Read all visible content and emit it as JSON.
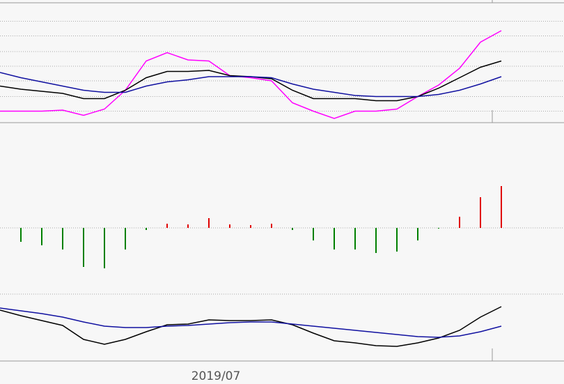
{
  "chart_data": [
    {
      "type": "line",
      "ylim": [
        0,
        100
      ],
      "yticks": [
        7,
        21,
        36,
        50,
        64,
        79,
        93
      ],
      "grid": true,
      "series": [
        {
          "color": "#ff00ff",
          "values": [
            7,
            7,
            7,
            8,
            3,
            9,
            27,
            55,
            63,
            56,
            55,
            41,
            39,
            36,
            15,
            7,
            0,
            7,
            7,
            9,
            21,
            32,
            48,
            73,
            84
          ]
        },
        {
          "color": "#000000",
          "values": [
            31,
            28,
            26,
            24,
            19,
            19,
            27,
            39,
            45,
            45,
            46,
            41,
            40,
            38,
            27,
            19,
            19,
            19,
            17,
            17,
            21,
            29,
            39,
            49,
            55
          ]
        },
        {
          "color": "#1010a0",
          "values": [
            44,
            39,
            35,
            31,
            27,
            25,
            25,
            31,
            35,
            37,
            40,
            40,
            40,
            39,
            33,
            28,
            25,
            22,
            21,
            21,
            21,
            23,
            27,
            33,
            40
          ]
        }
      ]
    },
    {
      "type": "bar",
      "ylim": [
        -100,
        100
      ],
      "yticks": [
        -95,
        0
      ],
      "grid": true,
      "up_color": "#e00000",
      "down_color": "#008000",
      "values": [
        null,
        -20,
        -25,
        -31,
        -56,
        -58,
        -31,
        -3,
        6,
        5,
        14,
        5,
        4,
        6,
        -3,
        -18,
        -31,
        -31,
        -36,
        -34,
        -18,
        -1,
        16,
        44,
        60
      ]
    },
    {
      "type": "line",
      "ylim": [
        0,
        100
      ],
      "categories": [
        null,
        null,
        null,
        null,
        null,
        null,
        null,
        null,
        null,
        null,
        "2019/07",
        null,
        null,
        null,
        null,
        null,
        null,
        null,
        null,
        null,
        null,
        null,
        null,
        null,
        null
      ],
      "series": [
        {
          "color": "#000000",
          "values": [
            75,
            67,
            60,
            53,
            33,
            26,
            33,
            44,
            54,
            55,
            61,
            60,
            60,
            61,
            54,
            42,
            31,
            28,
            24,
            23,
            28,
            35,
            46,
            65,
            80
          ]
        },
        {
          "color": "#1010a0",
          "values": [
            78,
            74,
            70,
            65,
            58,
            52,
            50,
            50,
            52,
            53,
            55,
            57,
            58,
            58,
            55,
            52,
            49,
            46,
            43,
            40,
            37,
            36,
            38,
            44,
            52
          ]
        }
      ]
    }
  ]
}
